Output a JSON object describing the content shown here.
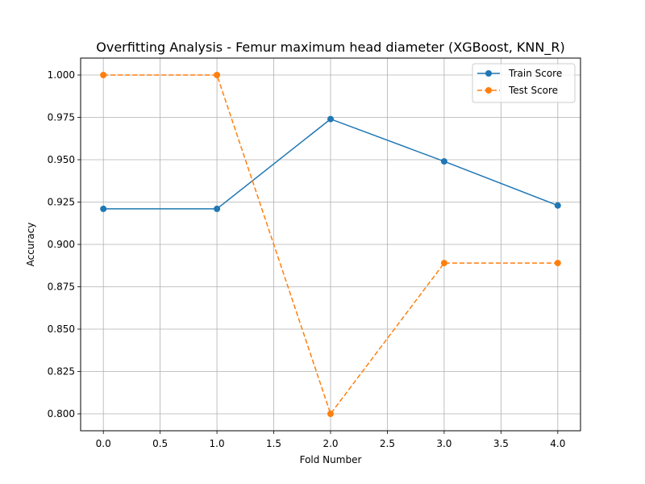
{
  "chart_data": {
    "type": "line",
    "title": "Overfitting Analysis - Femur maximum head diameter (XGBoost, KNN_R)",
    "xlabel": "Fold Number",
    "ylabel": "Accuracy",
    "x": [
      0,
      1,
      2,
      3,
      4
    ],
    "xlim": [
      -0.2,
      4.2
    ],
    "ylim": [
      0.79,
      1.01
    ],
    "xticks": [
      0.0,
      0.5,
      1.0,
      1.5,
      2.0,
      2.5,
      3.0,
      3.5,
      4.0
    ],
    "xtick_labels": [
      "0.0",
      "0.5",
      "1.0",
      "1.5",
      "2.0",
      "2.5",
      "3.0",
      "3.5",
      "4.0"
    ],
    "yticks": [
      0.8,
      0.825,
      0.85,
      0.875,
      0.9,
      0.925,
      0.95,
      0.975,
      1.0
    ],
    "ytick_labels": [
      "0.800",
      "0.825",
      "0.850",
      "0.875",
      "0.900",
      "0.925",
      "0.950",
      "0.975",
      "1.000"
    ],
    "grid": true,
    "legend_position": "top-right",
    "series": [
      {
        "name": "Train Score",
        "values": [
          0.921,
          0.921,
          0.974,
          0.949,
          0.923
        ],
        "color": "#1f77b4",
        "line_style": "solid",
        "marker": "circle"
      },
      {
        "name": "Test Score",
        "values": [
          1.0,
          1.0,
          0.8,
          0.889,
          0.889
        ],
        "color": "#ff7f0e",
        "line_style": "dashed",
        "marker": "circle"
      }
    ]
  }
}
